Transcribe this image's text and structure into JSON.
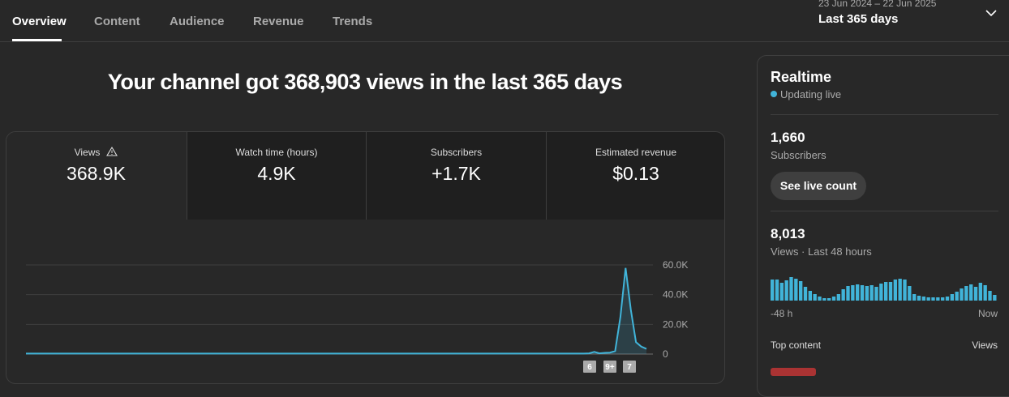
{
  "tabs": [
    "Overview",
    "Content",
    "Audience",
    "Revenue",
    "Trends"
  ],
  "date_range": {
    "dates": "23 Jun 2024 – 22 Jun 2025",
    "label": "Last 365 days"
  },
  "headline": "Your channel got 368,903 views in the last 365 days",
  "metrics": [
    {
      "label": "Views",
      "value": "368.9K"
    },
    {
      "label": "Watch time (hours)",
      "value": "4.9K"
    },
    {
      "label": "Subscribers",
      "value": "+1.7K"
    },
    {
      "label": "Estimated revenue",
      "value": "$0.13"
    }
  ],
  "chart_data": {
    "type": "line",
    "color": "#41b4d9",
    "grid": true,
    "values": [
      300,
      300,
      300,
      300,
      300,
      300,
      300,
      300,
      300,
      300,
      300,
      300,
      300,
      300,
      300,
      300,
      300,
      300,
      300,
      300,
      300,
      300,
      300,
      300,
      300,
      300,
      300,
      300,
      300,
      300,
      300,
      300,
      300,
      300,
      300,
      300,
      300,
      300,
      300,
      300,
      300,
      300,
      300,
      300,
      300,
      300,
      300,
      300,
      300,
      300,
      300,
      300,
      300,
      300,
      300,
      300,
      300,
      300,
      300,
      300,
      300,
      300,
      300,
      300,
      300,
      300,
      300,
      300,
      300,
      300,
      300,
      300,
      300,
      300,
      300,
      300,
      300,
      300,
      300,
      300,
      300,
      300,
      300,
      300,
      300,
      300,
      300,
      300,
      300,
      300,
      300,
      300,
      300,
      300,
      300,
      300,
      300,
      300,
      300,
      300,
      300,
      300,
      300,
      300,
      300,
      300,
      300,
      300,
      500,
      1500,
      500,
      800,
      1000,
      2000,
      25000,
      58000,
      30000,
      8000,
      5000,
      3500
    ],
    "ylim": [
      0,
      60000
    ],
    "yticks": [
      0,
      {
        "value": 20000,
        "label": "20.0K"
      },
      {
        "value": 40000,
        "label": "40.0K"
      },
      {
        "value": 60000,
        "label": "60.0K"
      }
    ],
    "markers": [
      "6",
      "9+",
      "7"
    ]
  },
  "realtime": {
    "title": "Realtime",
    "status": "Updating live",
    "subscribers": {
      "value": "1,660",
      "label": "Subscribers"
    },
    "button": "See live count",
    "views": {
      "value": "8,013",
      "label": "Views · Last 48 hours"
    },
    "bar_chart": {
      "type": "bar",
      "color": "#41b4d9",
      "values": [
        260,
        260,
        220,
        250,
        290,
        270,
        240,
        170,
        120,
        80,
        50,
        30,
        30,
        50,
        80,
        140,
        180,
        190,
        200,
        190,
        180,
        190,
        170,
        210,
        230,
        230,
        260,
        270,
        260,
        180,
        80,
        60,
        50,
        40,
        40,
        40,
        40,
        50,
        80,
        110,
        150,
        180,
        200,
        170,
        220,
        190,
        120,
        70
      ],
      "x_start": "-48 h",
      "x_end": "Now"
    },
    "top_content": {
      "label": "Top content",
      "column": "Views"
    }
  }
}
